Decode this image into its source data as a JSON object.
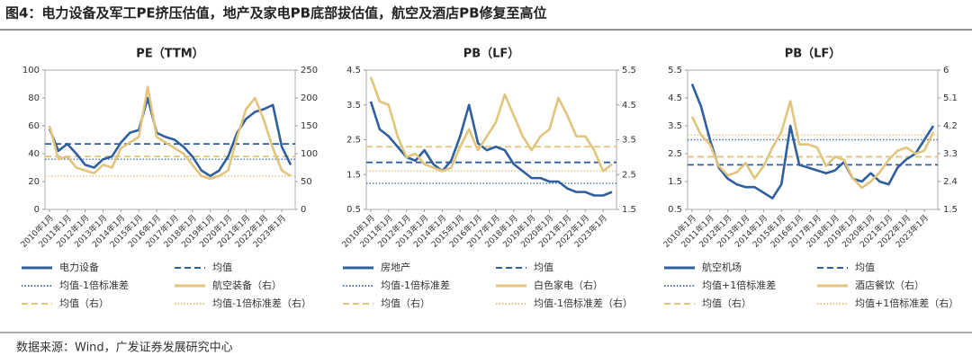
{
  "header": {
    "title": "图4：电力设备及军工PE挤压估值，地产及家电PB底部拔估值，航空及酒店PB修复至高位"
  },
  "footer": {
    "source": "数据来源：Wind，广发证券发展研究中心"
  },
  "chart_data": [
    {
      "type": "line",
      "title": "PE（TTM）",
      "categories": [
        "2010年1月",
        null,
        "2011年1月",
        null,
        "2012年1月",
        null,
        "2013年1月",
        null,
        "2014年1月",
        null,
        "2015年1月",
        null,
        "2016年1月",
        null,
        "2017年1月",
        null,
        "2018年1月",
        null,
        "2019年1月",
        null,
        "2020年1月",
        null,
        "2021年1月",
        null,
        "2022年1月",
        null,
        "2023年1月",
        null
      ],
      "ylim": [
        0,
        100
      ],
      "yticks": [
        0,
        20,
        40,
        60,
        80,
        100
      ],
      "y2lim": [
        0,
        250
      ],
      "y2ticks": [
        0,
        50,
        100,
        150,
        200,
        250
      ],
      "series": [
        {
          "name": "电力设备",
          "color": "#2f5f9e",
          "style": "solid",
          "values": [
            58,
            42,
            47,
            40,
            32,
            30,
            36,
            38,
            48,
            55,
            57,
            80,
            55,
            52,
            50,
            45,
            38,
            28,
            24,
            28,
            38,
            55,
            65,
            70,
            72,
            75,
            45,
            32
          ]
        },
        {
          "name": "均值",
          "color": "#2f5f9e",
          "style": "dashed",
          "value": 47
        },
        {
          "name": "均值-1倍标准差",
          "color": "#4a74b8",
          "style": "dotted",
          "value": 36
        },
        {
          "name": "航空装备（右）",
          "color": "#e2c47c",
          "style": "solid",
          "axis": "y2",
          "values": [
            150,
            90,
            95,
            75,
            70,
            65,
            80,
            75,
            110,
            120,
            130,
            220,
            130,
            120,
            110,
            100,
            80,
            60,
            55,
            60,
            70,
            130,
            180,
            200,
            160,
            110,
            70,
            60
          ]
        },
        {
          "name": "均值（右）",
          "color": "#e2c47c",
          "style": "dashed",
          "axis": "y2",
          "value": 95
        },
        {
          "name": "均值-1倍标准差（右）",
          "color": "#e2c47c",
          "style": "dotted",
          "axis": "y2",
          "value": 60
        }
      ]
    },
    {
      "type": "line",
      "title": "PB（LF）",
      "categories": [
        "2010年1月",
        null,
        "2011年1月",
        null,
        "2012年1月",
        null,
        "2013年1月",
        null,
        "2014年1月",
        null,
        "2015年1月",
        null,
        "2016年1月",
        null,
        "2017年1月",
        null,
        "2018年1月",
        null,
        "2019年1月",
        null,
        "2020年1月",
        null,
        "2021年1月",
        null,
        "2022年1月",
        null,
        "2023年1月",
        null
      ],
      "ylim": [
        0.5,
        4.5
      ],
      "yticks": [
        0.5,
        1.5,
        2.5,
        3.5,
        4.5
      ],
      "y2lim": [
        1.5,
        5.5
      ],
      "y2ticks": [
        1.5,
        2.5,
        3.5,
        4.5,
        5.5
      ],
      "series": [
        {
          "name": "房地产",
          "color": "#2f5f9e",
          "style": "solid",
          "values": [
            3.6,
            2.8,
            2.6,
            2.3,
            2.0,
            1.9,
            2.2,
            1.8,
            1.6,
            1.9,
            2.6,
            3.5,
            2.4,
            2.2,
            2.3,
            2.2,
            1.8,
            1.6,
            1.4,
            1.4,
            1.3,
            1.3,
            1.1,
            1.0,
            1.0,
            0.9,
            0.9,
            1.0
          ]
        },
        {
          "name": "均值",
          "color": "#2f5f9e",
          "style": "dashed",
          "value": 1.85
        },
        {
          "name": "均值-1倍标准差",
          "color": "#4a74b8",
          "style": "dotted",
          "value": 1.25
        },
        {
          "name": "白色家电（右）",
          "color": "#e2c47c",
          "style": "solid",
          "axis": "y2",
          "values": [
            5.3,
            4.6,
            4.5,
            3.6,
            3.0,
            3.1,
            2.8,
            2.7,
            2.6,
            2.7,
            3.3,
            3.8,
            3.2,
            3.6,
            4.0,
            4.8,
            4.2,
            3.6,
            3.2,
            3.6,
            3.8,
            4.7,
            4.2,
            3.6,
            3.6,
            3.2,
            2.6,
            2.8
          ]
        },
        {
          "name": "均值（右）",
          "color": "#e2c47c",
          "style": "dashed",
          "axis": "y2",
          "value": 3.3
        },
        {
          "name": "均值-1倍标准差（右）",
          "color": "#e2c47c",
          "style": "dotted",
          "axis": "y2",
          "value": 2.6
        }
      ]
    },
    {
      "type": "line",
      "title": "PB（LF）",
      "categories": [
        "2010年1月",
        null,
        "2011年1月",
        null,
        "2012年1月",
        null,
        "2013年1月",
        null,
        "2014年1月",
        null,
        "2015年1月",
        null,
        "2016年1月",
        null,
        "2017年1月",
        null,
        "2018年1月",
        null,
        "2019年1月",
        null,
        "2020年1月",
        null,
        "2021年1月",
        null,
        "2022年1月",
        null,
        "2023年1月",
        null
      ],
      "ylim": [
        0.5,
        5.5
      ],
      "yticks": [
        0.5,
        1.5,
        2.5,
        3.5,
        4.5,
        5.5
      ],
      "y2lim": [
        1.5,
        6
      ],
      "y2ticks": [
        1.5,
        2.4,
        3.3,
        4.2,
        5.1,
        6
      ],
      "series": [
        {
          "name": "航空机场",
          "color": "#2f5f9e",
          "style": "solid",
          "values": [
            5.0,
            4.2,
            3.0,
            2.0,
            1.6,
            1.4,
            1.3,
            1.3,
            1.1,
            0.9,
            1.4,
            3.5,
            2.1,
            2.0,
            1.9,
            1.8,
            1.9,
            2.2,
            1.6,
            1.5,
            1.8,
            1.5,
            1.4,
            2.0,
            2.3,
            2.5,
            3.0,
            3.5
          ]
        },
        {
          "name": "均值",
          "color": "#2f5f9e",
          "style": "dashed",
          "value": 2.1
        },
        {
          "name": "均值+1倍标准差",
          "color": "#4a74b8",
          "style": "dotted",
          "value": 3.0
        },
        {
          "name": "酒店餐饮（右）",
          "color": "#e2c47c",
          "style": "solid",
          "axis": "y2",
          "values": [
            4.5,
            3.9,
            3.6,
            2.9,
            2.6,
            2.7,
            3.0,
            2.5,
            2.9,
            3.5,
            4.0,
            5.0,
            3.6,
            3.6,
            3.5,
            2.9,
            3.2,
            3.1,
            2.5,
            2.2,
            2.4,
            2.7,
            3.1,
            3.4,
            3.5,
            3.3,
            3.4,
            4.0
          ]
        },
        {
          "name": "均值（右）",
          "color": "#e2c47c",
          "style": "dashed",
          "axis": "y2",
          "value": 3.2
        },
        {
          "name": "均值+1倍标准差（右）",
          "color": "#e2c47c",
          "style": "dotted",
          "axis": "y2",
          "value": 3.9
        }
      ]
    }
  ]
}
